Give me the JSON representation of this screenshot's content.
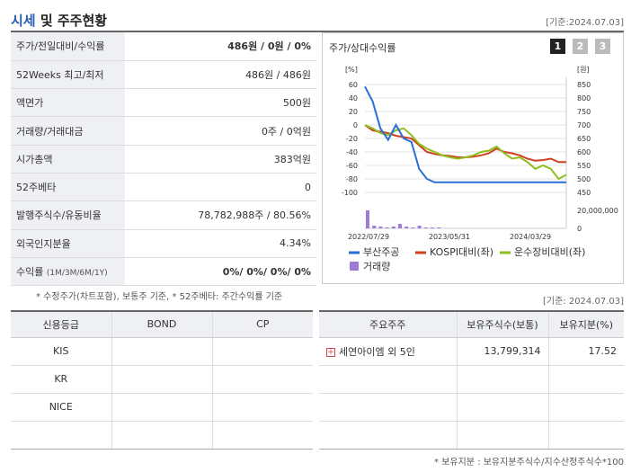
{
  "header": {
    "title_main": "시세",
    "title_rest": " 및 주주현황",
    "date": "[기준:2024.07.03]"
  },
  "info_rows": [
    {
      "label": "주가/전일대비/수익률",
      "value": "486원 / 0원 / 0%"
    },
    {
      "label": "52Weeks 최고/최저",
      "value": "486원 / 486원"
    },
    {
      "label": "액면가",
      "value": "500원"
    },
    {
      "label": "거래량/거래대금",
      "value": "0주 / 0억원"
    },
    {
      "label": "시가총액",
      "value": "383억원"
    },
    {
      "label": "52주베타",
      "value": "0"
    },
    {
      "label": "발행주식수/유동비율",
      "value": "78,782,988주 / 80.56%"
    },
    {
      "label": "외국인지분율",
      "value": "4.34%"
    },
    {
      "label": "수익률",
      "label_sub": "(1M/3M/6M/1Y)",
      "value": "0%/ 0%/ 0%/ 0%"
    }
  ],
  "chart": {
    "title": "주가/상대수익률",
    "pages": [
      "1",
      "2",
      "3"
    ],
    "active_page": 0
  },
  "chart_data": {
    "type": "line",
    "left_unit": "[%]",
    "right_unit": "[원]",
    "left_ticks": [
      60,
      40,
      20,
      0,
      -20,
      -40,
      -60,
      -80,
      -100
    ],
    "right_ticks": [
      850,
      800,
      750,
      700,
      650,
      600,
      550,
      500,
      450
    ],
    "ylim_left": [
      -100,
      60
    ],
    "ylim_right": [
      450,
      850
    ],
    "x_labels": [
      "2022/07/29",
      "2023/05/31",
      "2024/03/29"
    ],
    "volume_tick_top": "20,000,000",
    "volume_tick_bottom": "0",
    "series": [
      {
        "name": "부산주공",
        "color": "#2a6fd6",
        "values": [
          57,
          35,
          -5,
          -22,
          0,
          -20,
          -25,
          -65,
          -80,
          -85,
          -85,
          -85,
          -85,
          -85,
          -85,
          -85,
          -85,
          -85,
          -85,
          -85,
          -85,
          -85,
          -85,
          -85,
          -85,
          -85,
          -85
        ]
      },
      {
        "name": "KOSPI대비(좌)",
        "color": "#d0401e",
        "values": [
          0,
          -8,
          -10,
          -12,
          -16,
          -18,
          -20,
          -30,
          -40,
          -43,
          -45,
          -46,
          -48,
          -48,
          -47,
          -45,
          -42,
          -35,
          -40,
          -42,
          -45,
          -50,
          -53,
          -52,
          -50,
          -55,
          -55
        ]
      },
      {
        "name": "운수장비대비(좌)",
        "color": "#8dbf1f",
        "values": [
          0,
          -5,
          -12,
          -15,
          -8,
          -5,
          -15,
          -28,
          -35,
          -40,
          -45,
          -48,
          -50,
          -48,
          -45,
          -40,
          -38,
          -32,
          -42,
          -50,
          -48,
          -55,
          -65,
          -60,
          -65,
          -80,
          -74
        ]
      }
    ],
    "volume": {
      "name": "거래량",
      "color": "#a07ad8",
      "values": [
        20,
        3,
        2,
        1,
        2,
        5,
        2,
        1,
        3,
        1,
        1,
        1
      ]
    }
  },
  "note1": "* 수정주가(차트포함), 보통주 기준, * 52주베타: 주간수익률 기준",
  "date_mid": "[기준: 2024.07.03]",
  "credit": {
    "headers": [
      "신용등급",
      "BOND",
      "CP"
    ],
    "rows": [
      [
        "KIS",
        "",
        ""
      ],
      [
        "KR",
        "",
        ""
      ],
      [
        "NICE",
        "",
        ""
      ],
      [
        "",
        "",
        ""
      ]
    ]
  },
  "holders": {
    "headers": [
      "주요주주",
      "보유주식수(보통)",
      "보유지분(%)"
    ],
    "rows": [
      [
        "세연아이엠 외 5인",
        "13,799,314",
        "17.52"
      ],
      [
        "",
        "",
        ""
      ],
      [
        "",
        "",
        ""
      ],
      [
        "",
        "",
        ""
      ]
    ]
  },
  "note2": "* 보유지분 : 보유지분주식수/지수산정주식수*100"
}
